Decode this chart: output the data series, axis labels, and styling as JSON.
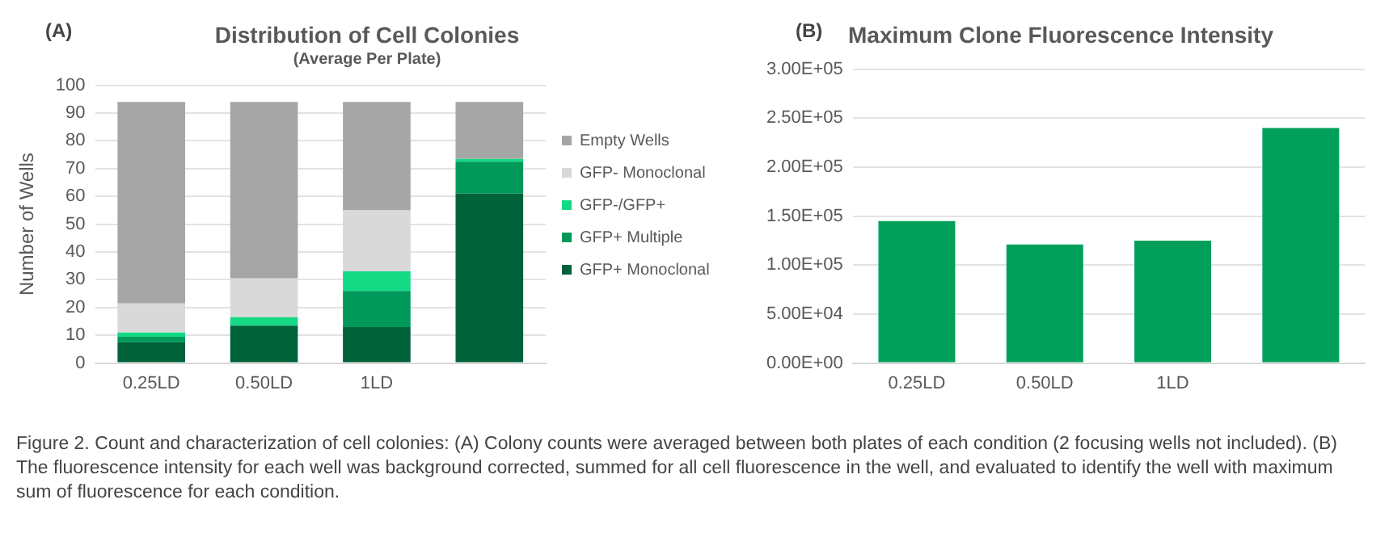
{
  "chart_data": [
    {
      "type": "bar",
      "title": "Distribution of Cell Colonies",
      "subtitle": "(Average Per Plate)",
      "ylabel": "Number of Wells",
      "stacked": true,
      "annotations": [
        "(A)",
        "Figure 2. Count and characterization of cell colonies: (A) Colony counts were averaged between both plates of each condition (2 focusing wells not included). (B) The fluorescence intensity for each well was background corrected, summed for all cell fluorescence in the well, and evaluated to identify the well with maximum sum of fluorescence for each condition."
      ],
      "categories": [
        "0.25LD",
        "0.50LD",
        "1LD",
        null
      ],
      "series": [
        {
          "name": "GFP+ Monoclonal",
          "color": "#00623a",
          "values": [
            7.5,
            13.5,
            13,
            61
          ]
        },
        {
          "name": "GFP+ Multiple",
          "color": "#00995a",
          "values": [
            2,
            0,
            13,
            11.5
          ]
        },
        {
          "name": "GFP-/GFP+",
          "color": "#14d985",
          "values": [
            1.5,
            3,
            7,
            1
          ]
        },
        {
          "name": "GFP- Monoclonal",
          "color": "#d9d9d9",
          "values": [
            10.5,
            14,
            22,
            0
          ]
        },
        {
          "name": "Empty Wells",
          "color": "#a6a6a6",
          "values": [
            72.5,
            63.5,
            39,
            20.5
          ]
        }
      ],
      "ylim": [
        0,
        100
      ],
      "yticks": [
        0,
        10,
        20,
        30,
        40,
        50,
        60,
        70,
        80,
        90,
        100
      ],
      "grid": "y",
      "legend": "right"
    },
    {
      "type": "bar",
      "title": "Maximum Clone Fluorescence Intensity",
      "annotations": [
        "(B)"
      ],
      "categories": [
        "0.25LD",
        "0.50LD",
        "1LD",
        null
      ],
      "values": [
        145000,
        121000,
        125000,
        240000
      ],
      "color": "#00a05a",
      "ylim": [
        0,
        300000
      ],
      "yticks": [
        {
          "value": 0,
          "label": "0.00E+00"
        },
        {
          "value": 50000,
          "label": "5.00E+04"
        },
        {
          "value": 100000,
          "label": "1.00E+05"
        },
        {
          "value": 150000,
          "label": "1.50E+05"
        },
        {
          "value": 200000,
          "label": "2.00E+05"
        },
        {
          "value": 250000,
          "label": "2.50E+05"
        },
        {
          "value": 300000,
          "label": "3.00E+05"
        }
      ],
      "grid": "y"
    }
  ]
}
